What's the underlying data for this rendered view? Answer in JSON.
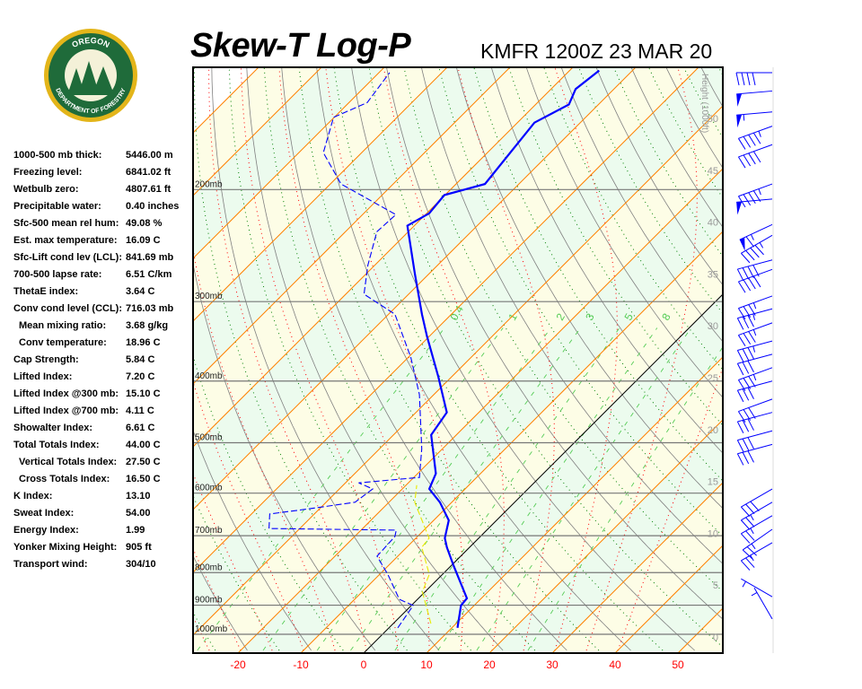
{
  "logo": {
    "top_text": "OREGON",
    "bottom_text": "DEPARTMENT OF FORESTRY",
    "colors": {
      "ring": "#e3b51a",
      "field": "#1f6b3a"
    }
  },
  "header": {
    "title": "Skew-T Log-P",
    "station_time": "KMFR 1200Z 23 MAR 20"
  },
  "indices": [
    {
      "label": "1000-500 mb thick:",
      "value": "5446.00 m",
      "indent": false
    },
    {
      "label": "Freezing level:",
      "value": "6841.02 ft",
      "indent": false
    },
    {
      "label": "Wetbulb zero:",
      "value": "4807.61 ft",
      "indent": false
    },
    {
      "label": "Precipitable water:",
      "value": "0.40 inches",
      "indent": false
    },
    {
      "label": "Sfc-500 mean rel hum:",
      "value": "49.08 %",
      "indent": false
    },
    {
      "label": "Est. max temperature:",
      "value": "16.09 C",
      "indent": false
    },
    {
      "label": "Sfc-Lift cond lev (LCL):",
      "value": "841.69 mb",
      "indent": false
    },
    {
      "label": "700-500 lapse rate:",
      "value": "6.51 C/km",
      "indent": false
    },
    {
      "label": "ThetaE index:",
      "value": "3.64 C",
      "indent": false
    },
    {
      "label": "Conv cond level (CCL):",
      "value": "716.03 mb",
      "indent": false
    },
    {
      "label": "Mean mixing ratio:",
      "value": "3.68 g/kg",
      "indent": true
    },
    {
      "label": "Conv temperature:",
      "value": "18.96 C",
      "indent": true
    },
    {
      "label": "Cap Strength:",
      "value": "5.84 C",
      "indent": false
    },
    {
      "label": "Lifted Index:",
      "value": "7.20 C",
      "indent": false
    },
    {
      "label": "Lifted Index @300 mb:",
      "value": "15.10 C",
      "indent": false
    },
    {
      "label": "Lifted Index @700 mb:",
      "value": "4.11 C",
      "indent": false
    },
    {
      "label": "Showalter Index:",
      "value": "6.61 C",
      "indent": false
    },
    {
      "label": "Total Totals Index:",
      "value": "44.00 C",
      "indent": false
    },
    {
      "label": "Vertical Totals Index:",
      "value": "27.50 C",
      "indent": true
    },
    {
      "label": "Cross Totals Index:",
      "value": "16.50 C",
      "indent": true
    },
    {
      "label": "K Index:",
      "value": "13.10",
      "indent": false
    },
    {
      "label": "Sweat Index:",
      "value": "54.00",
      "indent": false
    },
    {
      "label": "Energy Index:",
      "value": "1.99",
      "indent": false
    },
    {
      "label": "Yonker Mixing Height:",
      "value": "905 ft",
      "indent": false
    },
    {
      "label": "Transport wind:",
      "value": "304/10",
      "indent": false
    }
  ],
  "chart_data": {
    "type": "line",
    "title": "Skew-T Log-P",
    "x_ticks": [
      -20,
      -10,
      0,
      10,
      20,
      30,
      40,
      50
    ],
    "pressure_levels": [
      {
        "p": 200,
        "label": "200mb"
      },
      {
        "p": 300,
        "label": "300mb"
      },
      {
        "p": 400,
        "label": "400mb"
      },
      {
        "p": 500,
        "label": "500mb"
      },
      {
        "p": 600,
        "label": "600mb"
      },
      {
        "p": 700,
        "label": "700mb"
      },
      {
        "p": 800,
        "label": "800mb"
      },
      {
        "p": 900,
        "label": "900mb"
      },
      {
        "p": 1000,
        "label": "1000mb"
      }
    ],
    "height_axis": {
      "label": "Height (1000ft)",
      "ticks": [
        0,
        5,
        10,
        15,
        20,
        25,
        30,
        35,
        40,
        45,
        50
      ]
    },
    "mixing_ratio_labels": [
      "0.4",
      "1",
      "2",
      "3",
      "5",
      "8"
    ],
    "mixing_ratio_values": [
      0.4,
      1,
      2,
      3,
      5,
      8,
      12,
      20
    ],
    "series": [
      {
        "kind": "temperature",
        "color": "#0000ff",
        "style": "solid",
        "points": [
          [
            977,
            10.9
          ],
          [
            901,
            7.9
          ],
          [
            878,
            7.7
          ],
          [
            831,
            4.3
          ],
          [
            779,
            0.3
          ],
          [
            730,
            -3.6
          ],
          [
            706,
            -5.4
          ],
          [
            662,
            -7.6
          ],
          [
            620,
            -11.9
          ],
          [
            591,
            -15.7
          ],
          [
            559,
            -17.1
          ],
          [
            486,
            -24
          ],
          [
            448,
            -25.1
          ],
          [
            394,
            -32.1
          ],
          [
            340,
            -40.4
          ],
          [
            314,
            -44.7
          ],
          [
            271,
            -52.3
          ],
          [
            228,
            -61.1
          ],
          [
            218,
            -59.6
          ],
          [
            204,
            -60.1
          ],
          [
            196,
            -55.4
          ],
          [
            157,
            -57.3
          ],
          [
            147,
            -54.7
          ],
          [
            139,
            -56.1
          ],
          [
            130,
            -55.3
          ]
        ]
      },
      {
        "kind": "dewpoint",
        "color": "#0000ff",
        "style": "dashed",
        "points": [
          [
            977,
            1.4
          ],
          [
            901,
            0.3
          ],
          [
            881,
            -2.9
          ],
          [
            805,
            -8.7
          ],
          [
            754,
            -13.3
          ],
          [
            702,
            -13.6
          ],
          [
            686,
            -14.4
          ],
          [
            682,
            -34.9
          ],
          [
            647,
            -37.1
          ],
          [
            635,
            -31.6
          ],
          [
            620,
            -25.4
          ],
          [
            591,
            -24.7
          ],
          [
            578,
            -27.9
          ],
          [
            567,
            -19.1
          ],
          [
            511,
            -23.3
          ],
          [
            420,
            -32.3
          ],
          [
            367,
            -39.6
          ],
          [
            314,
            -49
          ],
          [
            292,
            -57.1
          ],
          [
            263,
            -61.1
          ],
          [
            233,
            -65
          ],
          [
            219,
            -64.7
          ],
          [
            196,
            -78.3
          ],
          [
            175,
            -86.1
          ],
          [
            154,
            -90.1
          ],
          [
            146,
            -87.1
          ],
          [
            131,
            -88.3
          ]
        ]
      },
      {
        "kind": "wetbulb",
        "color": "#e8e800",
        "style": "dashed",
        "points": [
          [
            962,
            6
          ],
          [
            858,
            -0.4
          ],
          [
            805,
            -2.1
          ],
          [
            730,
            -7.6
          ],
          [
            706,
            -7.9
          ],
          [
            620,
            -15.9
          ],
          [
            583,
            -18.3
          ]
        ]
      }
    ],
    "winds": [
      {
        "p": 131,
        "dir": 270,
        "kt": 40
      },
      {
        "p": 140,
        "dir": 265,
        "kt": 50
      },
      {
        "p": 151,
        "dir": 265,
        "kt": 55
      },
      {
        "p": 159,
        "dir": 250,
        "kt": 45
      },
      {
        "p": 170,
        "dir": 250,
        "kt": 40
      },
      {
        "p": 196,
        "dir": 250,
        "kt": 45
      },
      {
        "p": 207,
        "dir": 265,
        "kt": 50
      },
      {
        "p": 227,
        "dir": 245,
        "kt": 65
      },
      {
        "p": 236,
        "dir": 240,
        "kt": 45
      },
      {
        "p": 258,
        "dir": 255,
        "kt": 40
      },
      {
        "p": 267,
        "dir": 250,
        "kt": 40
      },
      {
        "p": 294,
        "dir": 250,
        "kt": 35
      },
      {
        "p": 308,
        "dir": 255,
        "kt": 35
      },
      {
        "p": 324,
        "dir": 250,
        "kt": 35
      },
      {
        "p": 346,
        "dir": 255,
        "kt": 35
      },
      {
        "p": 363,
        "dir": 255,
        "kt": 30
      },
      {
        "p": 381,
        "dir": 250,
        "kt": 35
      },
      {
        "p": 400,
        "dir": 255,
        "kt": 30
      },
      {
        "p": 427,
        "dir": 250,
        "kt": 30
      },
      {
        "p": 448,
        "dir": 255,
        "kt": 30
      },
      {
        "p": 479,
        "dir": 255,
        "kt": 30
      },
      {
        "p": 503,
        "dir": 255,
        "kt": 30
      },
      {
        "p": 591,
        "dir": 240,
        "kt": 30
      },
      {
        "p": 620,
        "dir": 240,
        "kt": 25
      },
      {
        "p": 651,
        "dir": 240,
        "kt": 25
      },
      {
        "p": 684,
        "dir": 235,
        "kt": 25
      },
      {
        "p": 718,
        "dir": 240,
        "kt": 25
      },
      {
        "p": 873,
        "dir": 300,
        "kt": 5
      },
      {
        "p": 946,
        "dir": 330,
        "kt": 5
      }
    ],
    "colors": {
      "band_warm": "#fdfde6",
      "band_cool": "#ecfbee",
      "isotherm": "#ff8000",
      "dry_adiabat": "#808080",
      "moist_adiabat": "#ff0000",
      "dotted_green": "#008000",
      "mixing_ratio": "#55cc55",
      "axis_labels": "#ff0000",
      "height_labels": "#999999"
    }
  }
}
